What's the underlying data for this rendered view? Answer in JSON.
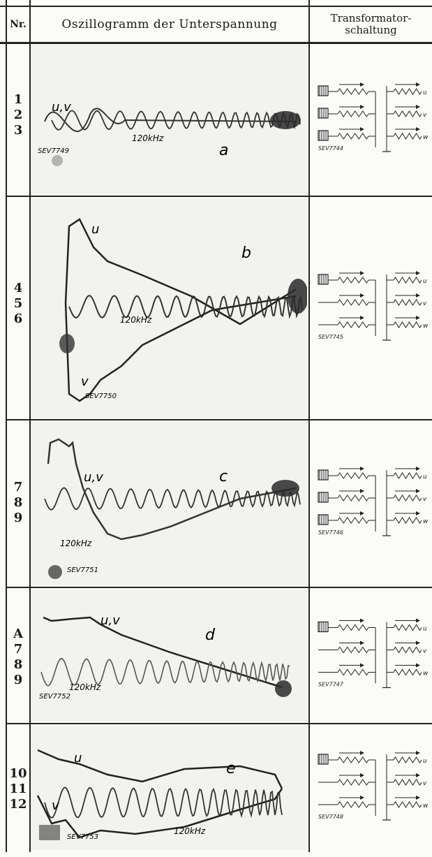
{
  "header": {
    "nr": "Nr.",
    "oscillogram": "Oszillogramm der Unterspannung",
    "transformer_line1": "Transformator-",
    "transformer_line2": "schaltung"
  },
  "rows": [
    {
      "nums": [
        "1",
        "2",
        "3"
      ],
      "letter": "a",
      "curve_label": "u,v",
      "freq": "120kHz",
      "sev_osc": "SEV7749",
      "sev_tr": "SEV7744",
      "tr_marks": [
        "u",
        "v",
        "w"
      ]
    },
    {
      "nums": [
        "4",
        "5",
        "6"
      ],
      "letter": "b",
      "curve_label_top": "u",
      "curve_label_bottom": "v",
      "freq": "120kHz",
      "sev_osc": "SEV7750",
      "sev_tr": "SEV7745",
      "tr_marks": [
        "u",
        "v",
        "w"
      ]
    },
    {
      "nums": [
        "7",
        "8",
        "9"
      ],
      "letter": "c",
      "curve_label": "u,v",
      "freq": "120kHz",
      "sev_osc": "SEV7751",
      "sev_tr": "SEV7746",
      "tr_marks": [
        "u",
        "v",
        "w"
      ]
    },
    {
      "nums": [
        "A",
        "7",
        "8",
        "9"
      ],
      "letter": "d",
      "curve_label": "u,v",
      "freq": "120kHz",
      "sev_osc": "SEV7752",
      "sev_tr": "SEV7747",
      "tr_marks": [
        "u",
        "v",
        "w"
      ]
    },
    {
      "nums": [
        "10",
        "11",
        "12"
      ],
      "letter": "e",
      "curve_label_top": "u",
      "curve_label_bottom": "v",
      "freq": "120kHz",
      "sev_osc": "SEV7753",
      "sev_tr": "SEV7748",
      "tr_marks": [
        "u",
        "v",
        "w"
      ]
    }
  ]
}
